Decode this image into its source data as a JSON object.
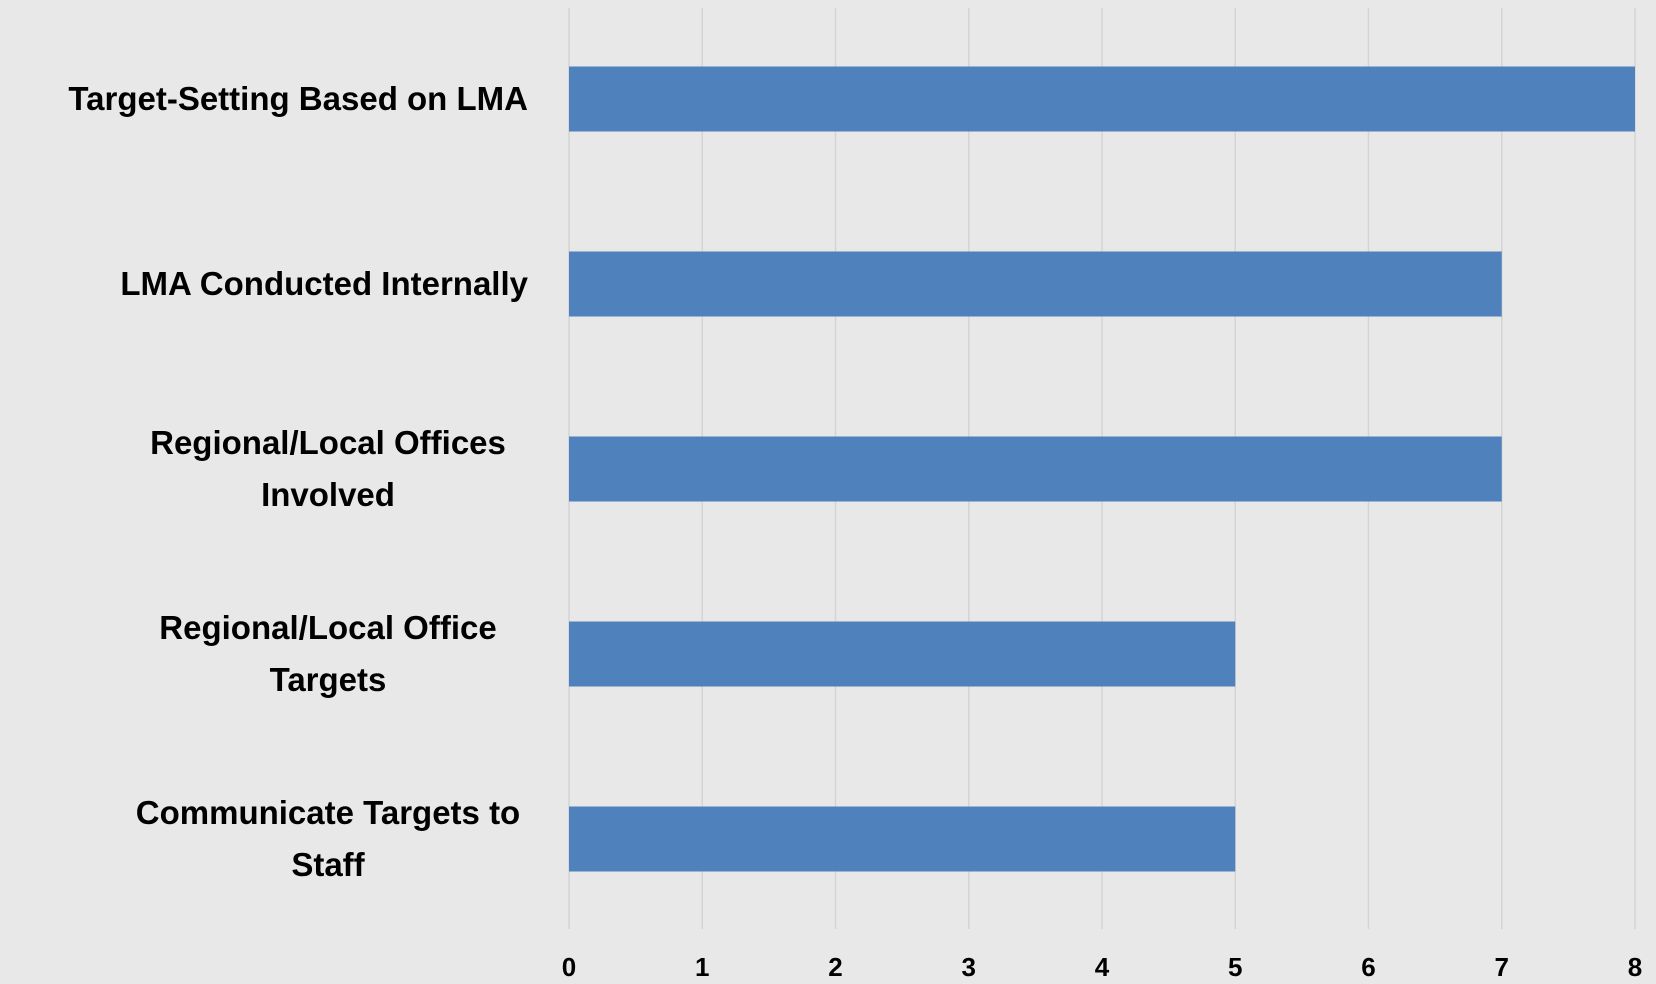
{
  "chart_data": {
    "type": "bar",
    "orientation": "horizontal",
    "categories": [
      "Target-Setting Based on LMA",
      "LMA Conducted Internally",
      "Regional/Local Offices Involved",
      "Regional/Local Office Targets",
      "Communicate Targets to Staff"
    ],
    "values": [
      8,
      7,
      7,
      5,
      5
    ],
    "color": "#4f81bd",
    "xlim": [
      0,
      8
    ],
    "xticks": [
      0,
      1,
      2,
      3,
      4,
      5,
      6,
      7,
      8
    ],
    "grid": true
  }
}
